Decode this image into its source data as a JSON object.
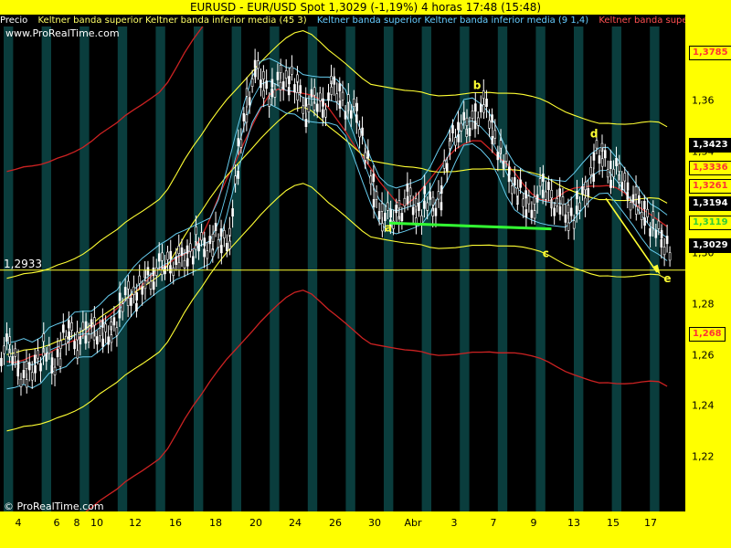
{
  "header": {
    "title": "EURUSD - EUR/USD Spot      1,3029 (-1,19%)      4 horas   17:48 (15:48)"
  },
  "legend": [
    {
      "text": "Precio",
      "color": "#ffffff"
    },
    {
      "text": "Keltner banda superior Keltner banda inferior media (45 3)",
      "color": "#ffff66"
    },
    {
      "text": "Keltner banda superior Keltner banda inferior media (9 1,4)",
      "color": "#66ccff"
    },
    {
      "text": "Keltner banda superior Ke",
      "color": "#ff5050"
    }
  ],
  "watermark_top": "www.ProRealTime.com",
  "watermark_bottom": "© ProRealTime.com",
  "colors": {
    "background": "#000000",
    "stripe": "#0a3d3d",
    "axis": "#ffff00",
    "candles": "#ffffff",
    "keltner45": "#ffff33",
    "keltner9": "#66ccee",
    "keltnerRed": "#cc2222",
    "support": "#33ff33",
    "arrow": "#ffff33"
  },
  "chart_data": {
    "type": "line",
    "title": "EURUSD - EUR/USD Spot",
    "x_ticks": [
      "4",
      "6",
      "8",
      "10",
      "12",
      "16",
      "18",
      "20",
      "24",
      "26",
      "30",
      "Abr",
      "3",
      "7",
      "9",
      "13",
      "15",
      "17"
    ],
    "y_ticks": [
      "1,36",
      "1,34",
      "1,32",
      "1,30",
      "1,28",
      "1,26",
      "1,24",
      "1,22"
    ],
    "ylim": [
      1.2,
      1.395
    ],
    "reference_line": {
      "value": 1.2933,
      "label": "1,2933"
    },
    "price_tags": [
      {
        "label": "1,3785",
        "value": 1.3785,
        "color": "#ff3333"
      },
      {
        "label": "1,3423",
        "value": 1.3423,
        "color": "#ffffff"
      },
      {
        "label": "1,3336",
        "value": 1.3336,
        "color": "#ff3333"
      },
      {
        "label": "1,3261",
        "value": 1.3261,
        "color": "#ff3333"
      },
      {
        "label": "1,3194",
        "value": 1.3194,
        "color": "#ffffff"
      },
      {
        "label": "1,3119",
        "value": 1.3119,
        "color": "#33cc33"
      },
      {
        "label": "1,3029",
        "value": 1.3029,
        "color": "#ffffff"
      },
      {
        "label": "1,268",
        "value": 1.268,
        "color": "#ff3333"
      }
    ],
    "annotations": [
      {
        "label": "a",
        "x": 0.565,
        "y": 1.3085
      },
      {
        "label": "b",
        "x": 0.695,
        "y": 1.3645
      },
      {
        "label": "c",
        "x": 0.797,
        "y": 1.2985
      },
      {
        "label": "d",
        "x": 0.867,
        "y": 1.3455
      },
      {
        "label": "e",
        "x": 0.975,
        "y": 1.2885
      }
    ],
    "price_series": [
      1.262,
      1.255,
      1.25,
      1.258,
      1.262,
      1.255,
      1.264,
      1.27,
      1.265,
      1.268,
      1.272,
      1.266,
      1.27,
      1.278,
      1.285,
      1.283,
      1.29,
      1.292,
      1.295,
      1.298,
      1.296,
      1.3,
      1.304,
      1.302,
      1.306,
      1.304,
      1.308,
      1.34,
      1.362,
      1.372,
      1.366,
      1.362,
      1.37,
      1.368,
      1.364,
      1.356,
      1.36,
      1.358,
      1.365,
      1.362,
      1.356,
      1.355,
      1.338,
      1.322,
      1.315,
      1.312,
      1.318,
      1.322,
      1.316,
      1.32,
      1.318,
      1.325,
      1.345,
      1.35,
      1.348,
      1.356,
      1.358,
      1.348,
      1.338,
      1.33,
      1.324,
      1.318,
      1.32,
      1.326,
      1.322,
      1.318,
      1.314,
      1.318,
      1.324,
      1.338,
      1.338,
      1.332,
      1.33,
      1.325,
      1.318,
      1.316,
      1.31,
      1.305,
      1.303
    ]
  }
}
